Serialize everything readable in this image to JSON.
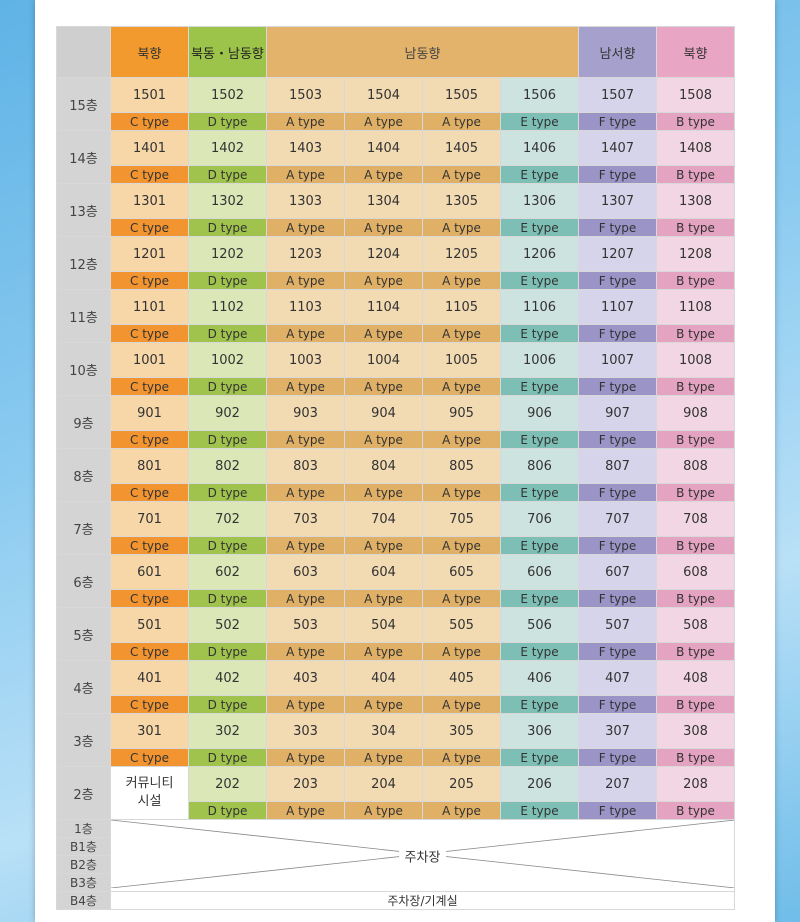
{
  "headers": {
    "corner": "",
    "north1": "북향",
    "northeast_southeast": "북동・남동향",
    "southeast": "남동향",
    "southwest": "남서향",
    "north2": "북향"
  },
  "floors": [
    {
      "label": "15층",
      "units": [
        "1501",
        "1502",
        "1503",
        "1504",
        "1505",
        "1506",
        "1507",
        "1508"
      ]
    },
    {
      "label": "14층",
      "units": [
        "1401",
        "1402",
        "1403",
        "1404",
        "1405",
        "1406",
        "1407",
        "1408"
      ]
    },
    {
      "label": "13층",
      "units": [
        "1301",
        "1302",
        "1303",
        "1304",
        "1305",
        "1306",
        "1307",
        "1308"
      ]
    },
    {
      "label": "12층",
      "units": [
        "1201",
        "1202",
        "1203",
        "1204",
        "1205",
        "1206",
        "1207",
        "1208"
      ]
    },
    {
      "label": "11층",
      "units": [
        "1101",
        "1102",
        "1103",
        "1104",
        "1105",
        "1106",
        "1107",
        "1108"
      ]
    },
    {
      "label": "10층",
      "units": [
        "1001",
        "1002",
        "1003",
        "1004",
        "1005",
        "1006",
        "1007",
        "1008"
      ]
    },
    {
      "label": "9층",
      "units": [
        "901",
        "902",
        "903",
        "904",
        "905",
        "906",
        "907",
        "908"
      ]
    },
    {
      "label": "8층",
      "units": [
        "801",
        "802",
        "803",
        "804",
        "805",
        "806",
        "807",
        "808"
      ]
    },
    {
      "label": "7층",
      "units": [
        "701",
        "702",
        "703",
        "704",
        "705",
        "706",
        "707",
        "708"
      ]
    },
    {
      "label": "6층",
      "units": [
        "601",
        "602",
        "603",
        "604",
        "605",
        "606",
        "607",
        "608"
      ]
    },
    {
      "label": "5층",
      "units": [
        "501",
        "502",
        "503",
        "504",
        "505",
        "506",
        "507",
        "508"
      ]
    },
    {
      "label": "4층",
      "units": [
        "401",
        "402",
        "403",
        "404",
        "405",
        "406",
        "407",
        "408"
      ]
    },
    {
      "label": "3층",
      "units": [
        "301",
        "302",
        "303",
        "304",
        "305",
        "306",
        "307",
        "308"
      ]
    }
  ],
  "types": [
    "C type",
    "D type",
    "A type",
    "A type",
    "A type",
    "E type",
    "F type",
    "B type"
  ],
  "floor2": {
    "label": "2층",
    "community_line1": "커뮤니티",
    "community_line2": "시설",
    "units": [
      "202",
      "203",
      "204",
      "205",
      "206",
      "207",
      "208"
    ],
    "types": [
      "D type",
      "A type",
      "A type",
      "A type",
      "E type",
      "F type",
      "B type"
    ]
  },
  "basement": {
    "labels": [
      "1층",
      "B1층",
      "B2층",
      "B3층"
    ],
    "parking_label": "주차장",
    "b4_label": "B4층",
    "b4_text": "주차장/기계실"
  }
}
